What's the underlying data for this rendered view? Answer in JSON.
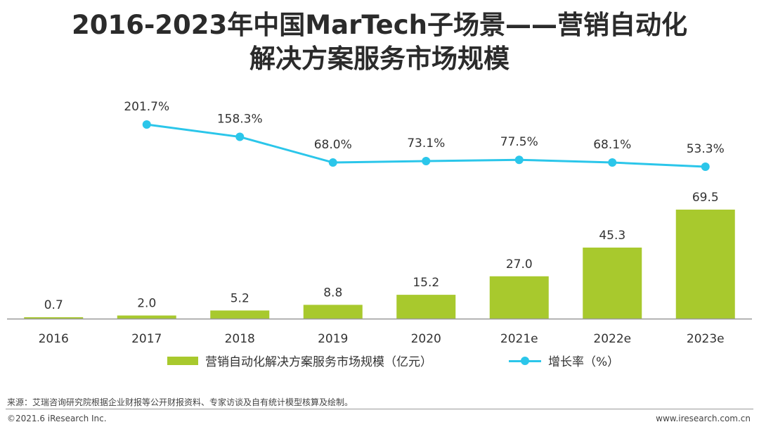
{
  "title_line1": "2016-2023年中国MarTech子场景——营销自动化",
  "title_line2": "解决方案服务市场规模",
  "colors": {
    "bar": "#a8c92d",
    "line": "#2bc6ea",
    "axis": "#999999",
    "text": "#333333"
  },
  "chart_data": {
    "type": "bar+line",
    "categories": [
      "2016",
      "2017",
      "2018",
      "2019",
      "2020",
      "2021e",
      "2022e",
      "2023e"
    ],
    "series": [
      {
        "name": "营销自动化解决方案服务市场规模（亿元）",
        "type": "bar",
        "values": [
          0.7,
          2.0,
          5.2,
          8.8,
          15.2,
          27.0,
          45.3,
          69.5
        ],
        "labels": [
          "0.7",
          "2.0",
          "5.2",
          "8.8",
          "15.2",
          "27.0",
          "45.3",
          "69.5"
        ]
      },
      {
        "name": "增长率（%）",
        "type": "line",
        "values": [
          null,
          201.7,
          158.3,
          68.0,
          73.1,
          77.5,
          68.1,
          53.3
        ],
        "labels": [
          "",
          "201.7%",
          "158.3%",
          "68.0%",
          "73.1%",
          "77.5%",
          "68.1%",
          "53.3%"
        ]
      }
    ],
    "legend_position": "bottom"
  },
  "legend": {
    "bar_label": "营销自动化解决方案服务市场规模（亿元）",
    "line_label": "增长率（%）"
  },
  "footer": {
    "source": "来源：艾瑞咨询研究院根据企业财报等公开财报资料、专家访谈及自有统计模型核算及绘制。",
    "copyright": "©2021.6 iResearch Inc.",
    "website": "www.iresearch.com.cn"
  }
}
